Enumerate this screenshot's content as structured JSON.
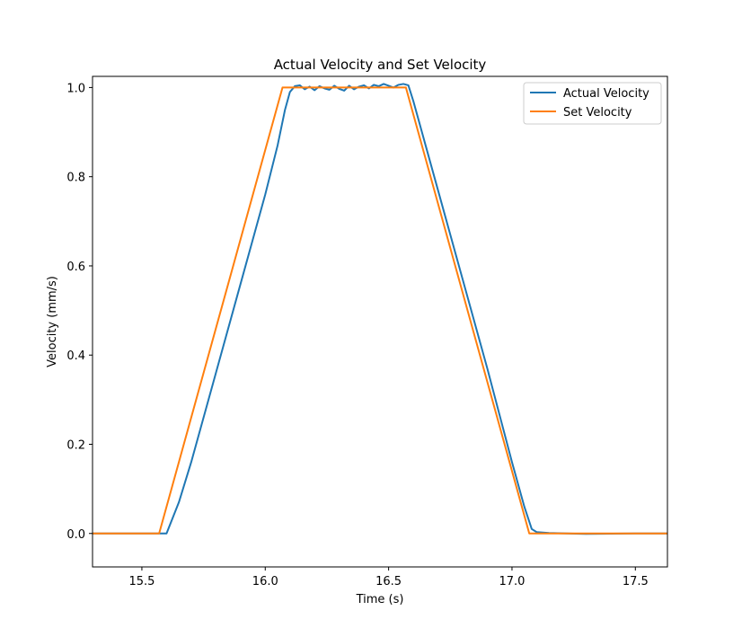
{
  "chart_data": {
    "type": "line",
    "title": "Actual Velocity and Set Velocity",
    "xlabel": "Time (s)",
    "ylabel": "Velocity (mm/s)",
    "xlim": [
      15.3,
      17.63
    ],
    "ylim": [
      -0.075,
      1.025
    ],
    "xticks": [
      15.5,
      16.0,
      16.5,
      17.0,
      17.5
    ],
    "xtick_labels": [
      "15.5",
      "16.0",
      "16.5",
      "17.0",
      "17.5"
    ],
    "yticks": [
      0.0,
      0.2,
      0.4,
      0.6,
      0.8,
      1.0
    ],
    "ytick_labels": [
      "0.0",
      "0.2",
      "0.4",
      "0.6",
      "0.8",
      "1.0"
    ],
    "grid": false,
    "legend_position": "top-right",
    "series": [
      {
        "name": "Actual Velocity",
        "color": "#1f77b4",
        "x": [
          15.3,
          15.5,
          15.6,
          15.65,
          15.7,
          15.8,
          15.9,
          16.0,
          16.05,
          16.08,
          16.1,
          16.12,
          16.14,
          16.16,
          16.18,
          16.2,
          16.22,
          16.24,
          16.26,
          16.28,
          16.3,
          16.32,
          16.34,
          16.36,
          16.38,
          16.4,
          16.42,
          16.44,
          16.46,
          16.48,
          16.5,
          16.52,
          16.54,
          16.56,
          16.58,
          16.6,
          16.62,
          16.65,
          16.7,
          16.8,
          16.9,
          17.0,
          17.05,
          17.08,
          17.1,
          17.15,
          17.3,
          17.5,
          17.63
        ],
        "y": [
          0.0,
          0.0,
          0.0,
          0.07,
          0.16,
          0.36,
          0.56,
          0.76,
          0.87,
          0.95,
          0.99,
          1.003,
          1.005,
          0.996,
          1.002,
          0.994,
          1.003,
          0.998,
          0.995,
          1.004,
          0.997,
          0.993,
          1.004,
          0.996,
          1.002,
          1.005,
          0.998,
          1.006,
          1.003,
          1.008,
          1.004,
          1.0,
          1.006,
          1.008,
          1.005,
          0.97,
          0.93,
          0.87,
          0.77,
          0.57,
          0.37,
          0.16,
          0.06,
          0.01,
          0.003,
          0.001,
          -0.001,
          0.0,
          0.0
        ]
      },
      {
        "name": "Set Velocity",
        "color": "#ff7f0e",
        "x": [
          15.3,
          15.57,
          16.07,
          16.57,
          17.07,
          17.63
        ],
        "y": [
          0.0,
          0.0,
          1.0,
          1.0,
          0.0,
          0.0
        ]
      }
    ]
  }
}
